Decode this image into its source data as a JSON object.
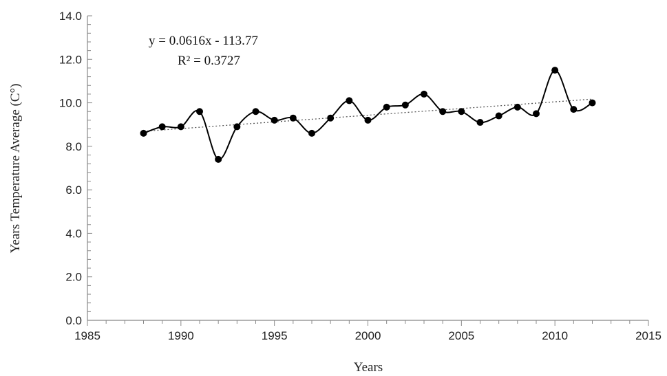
{
  "chart_data": {
    "type": "scatter",
    "title": "",
    "xlabel": "Years",
    "ylabel": "Years Temperature Average (C°)",
    "xlim": [
      1985,
      2015
    ],
    "ylim": [
      0,
      14
    ],
    "xticks": [
      1985,
      1990,
      1995,
      2000,
      2005,
      2010,
      2015
    ],
    "yticks": [
      "0.0",
      "2.0",
      "4.0",
      "6.0",
      "8.0",
      "10.0",
      "12.0",
      "14.0"
    ],
    "series": [
      {
        "line": "smooth",
        "marker": "circle",
        "color": "#000000",
        "x": [
          1988,
          1989,
          1990,
          1991,
          1992,
          1993,
          1994,
          1995,
          1996,
          1997,
          1998,
          1999,
          2000,
          2001,
          2002,
          2003,
          2004,
          2005,
          2006,
          2007,
          2008,
          2009,
          2010,
          2011,
          2012
        ],
        "y": [
          8.6,
          8.9,
          8.9,
          9.6,
          7.4,
          8.9,
          9.6,
          9.2,
          9.3,
          8.6,
          9.3,
          10.1,
          9.2,
          9.8,
          9.9,
          10.4,
          9.6,
          9.6,
          9.1,
          9.4,
          9.8,
          9.5,
          11.5,
          9.7,
          10.0
        ]
      }
    ],
    "trendline": {
      "type": "linear",
      "slope": 0.0616,
      "intercept": -113.77,
      "style": "dotted",
      "color": "#555555",
      "equation": "y = 0.0616x - 113.77",
      "r_squared": "R² = 0.3727"
    },
    "grid": false,
    "legend": "none"
  }
}
